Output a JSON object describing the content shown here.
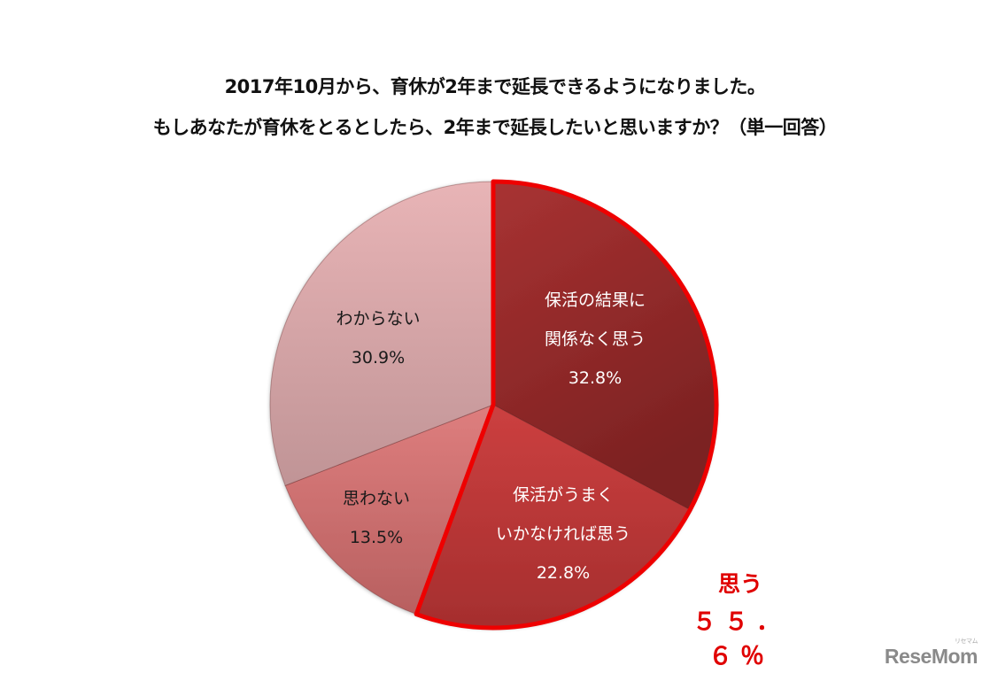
{
  "title": {
    "line1": "2017年10月から、育休が2年まで延長できるようになりました。",
    "line2": "もしあなたが育休をとるとしたら、2年まで延長したいと思いますか？（単一回答）"
  },
  "callout": {
    "label": "思う",
    "value": "５５．６％",
    "color": "#e00000"
  },
  "logo": {
    "text": "ReseMom",
    "ruby": "リセマム"
  },
  "slices": [
    {
      "line1": "保活の結果に",
      "line2": "関係なく思う",
      "value_label": "32.8%",
      "text_color": "#ffffff"
    },
    {
      "line1": "保活がうまく",
      "line2": "いかなければ思う",
      "value_label": "22.8%",
      "text_color": "#ffffff"
    },
    {
      "line1": "思わない",
      "line2": "",
      "value_label": "13.5%",
      "text_color": "#1a1a1a"
    },
    {
      "line1": "わからない",
      "line2": "",
      "value_label": "30.9%",
      "text_color": "#1a1a1a"
    }
  ],
  "chart_data": {
    "type": "pie",
    "title": "2017年10月から、育休が2年まで延長できるようになりました。もしあなたが育休をとるとしたら、2年まで延長したいと思いますか？（単一回答）",
    "categories": [
      "保活の結果に関係なく思う",
      "保活がうまくいかなければ思う",
      "思わない",
      "わからない"
    ],
    "values": [
      32.8,
      22.8,
      13.5,
      30.9
    ],
    "colors": [
      "#9e2a2a",
      "#c23a3a",
      "#d67474",
      "#d9a3a5"
    ],
    "start_angle_deg": 0,
    "direction": "clockwise",
    "highlight": {
      "categories": [
        "保活の結果に関係なく思う",
        "保活がうまくいかなければ思う"
      ],
      "outline_color": "#ee0000",
      "total_label": "思う",
      "total": 55.6
    },
    "unit": "%",
    "legend": "none (labels inside slices)"
  }
}
